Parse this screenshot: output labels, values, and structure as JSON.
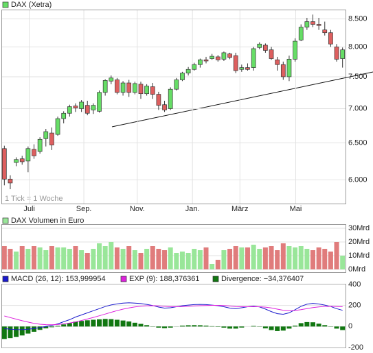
{
  "chart_data": [
    {
      "type": "candlestick",
      "name": "DAX (Xetra)",
      "annotation": "1 Tick = 1 Woche",
      "up_color": "#66dd66",
      "down_color": "#dd5f5f",
      "log_scale": true,
      "grid": true,
      "xlim": [
        -0.5,
        57.5
      ],
      "xticks": [
        {
          "value": 4.2,
          "label": "Juli"
        },
        {
          "value": 13.4,
          "label": "Sep."
        },
        {
          "value": 22.4,
          "label": "Nov."
        },
        {
          "value": 31.7,
          "label": "Jan."
        },
        {
          "value": 39.7,
          "label": "März"
        },
        {
          "value": 49.1,
          "label": "Mai"
        }
      ],
      "ylim": [
        5700,
        8660
      ],
      "yticks": [
        {
          "value": 6000,
          "label": "6.000"
        },
        {
          "value": 6500,
          "label": "6.500"
        },
        {
          "value": 7000,
          "label": "7.000"
        },
        {
          "value": 7500,
          "label": "7.500"
        },
        {
          "value": 8000,
          "label": "8.000"
        },
        {
          "value": 8500,
          "label": "8.500"
        }
      ],
      "open": [
        6420,
        6010,
        6230,
        6280,
        6250,
        6410,
        6380,
        6560,
        6640,
        6620,
        6850,
        6930,
        7040,
        7000,
        7050,
        6980,
        6960,
        7250,
        7430,
        7450,
        7250,
        7400,
        7250,
        7380,
        7230,
        7340,
        7220,
        7060,
        7000,
        7300,
        7450,
        7560,
        7620,
        7700,
        7780,
        7800,
        7830,
        7790,
        7880,
        7850,
        7620,
        7650,
        7650,
        7990,
        8030,
        7950,
        7780,
        7700,
        7500,
        7790,
        8120,
        8350,
        8450,
        8400,
        8300,
        8250,
        8000,
        7800
      ],
      "close": [
        6010,
        5960,
        6270,
        6240,
        6420,
        6320,
        6550,
        6660,
        6470,
        6850,
        6930,
        7030,
        7010,
        7100,
        6930,
        7050,
        7250,
        7440,
        7480,
        7250,
        7400,
        7250,
        7390,
        7230,
        7350,
        7220,
        7050,
        6980,
        7300,
        7450,
        7560,
        7620,
        7700,
        7780,
        7760,
        7840,
        7780,
        7900,
        7820,
        7600,
        7650,
        7620,
        7970,
        8050,
        7940,
        7800,
        7700,
        7500,
        7790,
        8100,
        8350,
        8450,
        8400,
        8380,
        8250,
        8050,
        7790,
        7950
      ],
      "high": [
        6460,
        6060,
        6300,
        6320,
        6450,
        6480,
        6580,
        6700,
        6720,
        6880,
        6960,
        7060,
        7080,
        7130,
        7120,
        7080,
        7280,
        7460,
        7520,
        7480,
        7430,
        7450,
        7420,
        7420,
        7380,
        7400,
        7260,
        7120,
        7330,
        7480,
        7580,
        7660,
        7730,
        7800,
        7830,
        7880,
        7860,
        7920,
        7900,
        7900,
        7700,
        7720,
        8000,
        8080,
        8060,
        8000,
        7830,
        7750,
        7850,
        8150,
        8400,
        8520,
        8580,
        8520,
        8450,
        8300,
        8050,
        7990
      ],
      "low": [
        5930,
        5880,
        6180,
        6200,
        6100,
        6280,
        6350,
        6450,
        6400,
        6600,
        6780,
        6880,
        6950,
        6950,
        6900,
        6920,
        6940,
        7200,
        7380,
        7220,
        7200,
        7180,
        7220,
        7150,
        7200,
        7150,
        6980,
        6950,
        6980,
        7280,
        7430,
        7520,
        7600,
        7650,
        7720,
        7780,
        7750,
        7760,
        7790,
        7560,
        7580,
        7600,
        7600,
        7960,
        7900,
        7780,
        7600,
        7450,
        7430,
        7750,
        8100,
        8300,
        8350,
        8300,
        8200,
        8000,
        7750,
        7650
      ]
    },
    {
      "type": "bar",
      "name": "DAX Volumen in Euro",
      "up_color": "#99e699",
      "down_color": "#e07c7c",
      "grid": true,
      "xlim": [
        -0.5,
        57.5
      ],
      "ylim": [
        0,
        30
      ],
      "yticks": [
        {
          "value": 0,
          "label": "0Mrd"
        },
        {
          "value": 10,
          "label": "10Mrd"
        },
        {
          "value": 20,
          "label": "20Mrd"
        },
        {
          "value": 30,
          "label": "30Mrd"
        }
      ],
      "values": [
        17,
        15,
        13,
        17,
        15,
        17,
        16,
        14,
        17,
        16,
        16,
        15,
        17,
        14,
        12,
        15,
        19,
        17,
        20,
        16,
        15,
        17,
        14,
        12,
        15,
        17,
        15,
        14,
        16,
        12,
        13,
        12,
        15,
        14,
        16,
        4,
        7,
        14,
        15,
        17,
        16,
        16,
        18,
        15,
        16,
        17,
        14,
        19,
        17,
        16,
        17,
        15,
        14,
        16,
        15,
        13,
        20,
        10
      ]
    },
    {
      "type": "macd",
      "grid": true,
      "xlim": [
        -0.5,
        57.5
      ],
      "ylim": [
        -200,
        400
      ],
      "yticks": [
        -200,
        0,
        200,
        400
      ],
      "series": [
        {
          "name": "MACD (26, 12): 153,999954",
          "color": "#1a1acc",
          "kind": "line",
          "values": [
            -20,
            -25,
            -30,
            -30,
            -25,
            -20,
            -10,
            0,
            10,
            25,
            45,
            65,
            90,
            110,
            130,
            150,
            170,
            190,
            205,
            215,
            222,
            225,
            222,
            218,
            210,
            200,
            185,
            175,
            178,
            188,
            198,
            204,
            208,
            210,
            208,
            204,
            198,
            188,
            175,
            170,
            178,
            188,
            194,
            186,
            166,
            142,
            122,
            116,
            130,
            160,
            192,
            212,
            220,
            214,
            204,
            190,
            170,
            154
          ]
        },
        {
          "name": "EXP (9): 188,376361",
          "color": "#dd22dd",
          "kind": "line",
          "values": [
            100,
            85,
            70,
            55,
            42,
            30,
            22,
            18,
            17,
            19,
            25,
            33,
            44,
            57,
            71,
            86,
            102,
            118,
            135,
            151,
            165,
            177,
            186,
            193,
            197,
            198,
            196,
            192,
            189,
            189,
            190,
            192,
            195,
            198,
            200,
            201,
            201,
            199,
            195,
            190,
            188,
            188,
            189,
            188,
            184,
            176,
            165,
            155,
            150,
            152,
            160,
            170,
            180,
            187,
            191,
            192,
            190,
            188
          ]
        },
        {
          "name": "Divergence: −34,376407",
          "color": "#117711",
          "kind": "bar",
          "values": [
            -120,
            -110,
            -100,
            -85,
            -67,
            -50,
            -32,
            -18,
            -7,
            6,
            20,
            32,
            46,
            53,
            59,
            64,
            68,
            72,
            70,
            64,
            57,
            48,
            36,
            25,
            13,
            2,
            -11,
            -17,
            -11,
            -1,
            8,
            12,
            13,
            12,
            8,
            3,
            -3,
            -11,
            -20,
            -20,
            -10,
            0,
            5,
            -2,
            -18,
            -34,
            -43,
            -39,
            -20,
            8,
            32,
            42,
            40,
            27,
            13,
            -2,
            -20,
            -34
          ]
        }
      ]
    }
  ]
}
